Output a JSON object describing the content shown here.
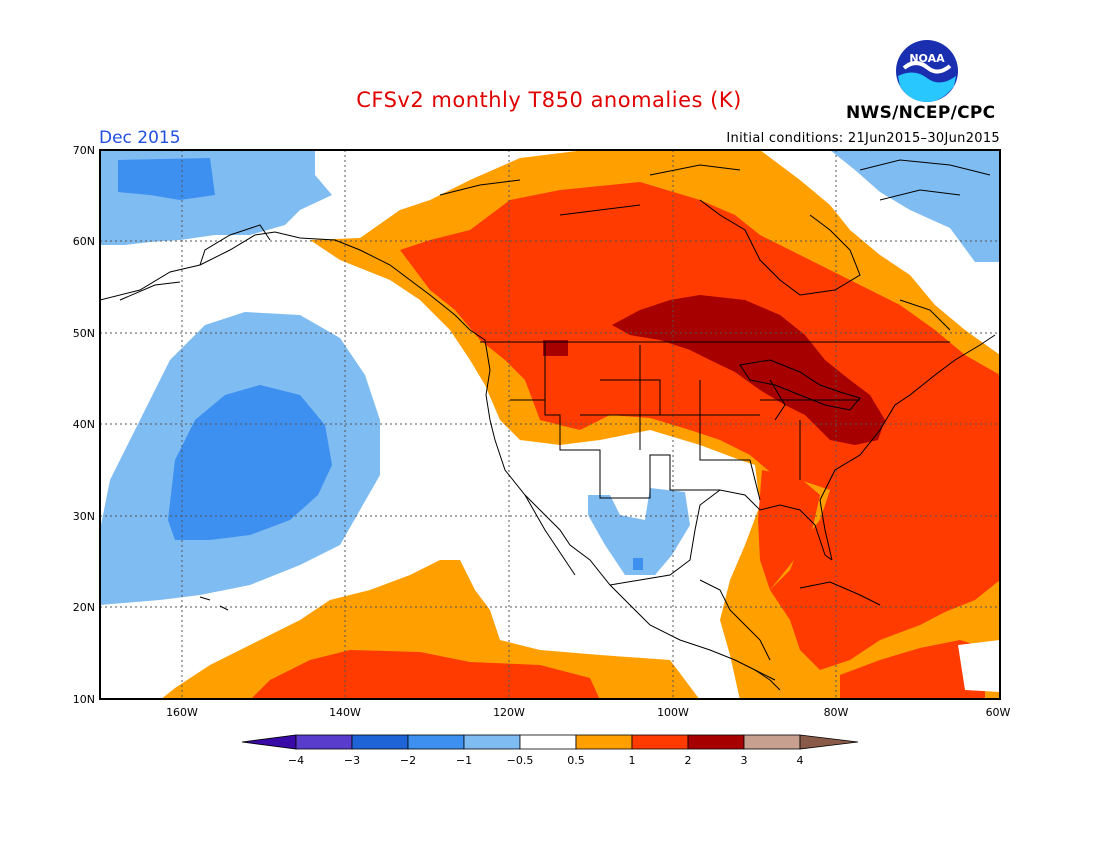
{
  "header": {
    "title": "CFSv2 monthly T850 anomalies (K)",
    "period": "Dec 2015",
    "initial_conditions": "Initial conditions: 21Jun2015–30Jun2015",
    "agency": "NWS/NCEP/CPC",
    "logo_text": "NOAA"
  },
  "map": {
    "lat_labels": [
      "70N",
      "60N",
      "50N",
      "40N",
      "30N",
      "20N",
      "10N"
    ],
    "lon_labels": [
      "160W",
      "140W",
      "120W",
      "100W",
      "80W",
      "60W"
    ],
    "lat_range": [
      10,
      70
    ],
    "lon_range": [
      -170,
      -60
    ]
  },
  "colorbar": {
    "labels": [
      "−4",
      "−3",
      "−2",
      "−1",
      "−0.5",
      "0.5",
      "1",
      "2",
      "3",
      "4"
    ],
    "colors": [
      "#3a0aa8",
      "#5a3ccc",
      "#1f64d6",
      "#3d8ff0",
      "#7fbcf2",
      "#ffffff",
      "#ff9f00",
      "#ff3b00",
      "#a60000",
      "#c8a090",
      "#8a5a48"
    ]
  }
}
